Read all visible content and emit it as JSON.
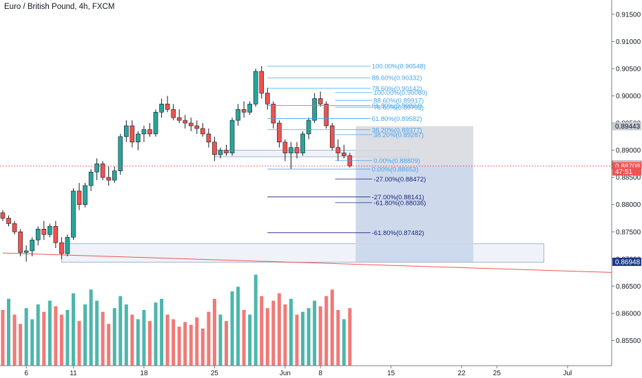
{
  "header": {
    "title": "Euro / British Pound, 4h, FXCM"
  },
  "chart_data": {
    "type": "candlestick",
    "symbol": "Euro / British Pound",
    "interval": "4h",
    "source": "FXCM",
    "y_axis": {
      "range": [
        0.8538,
        0.917
      ],
      "ticks": [
        "0.91500",
        "0.91000",
        "0.90500",
        "0.90000",
        "0.89500",
        "0.89000",
        "0.88500",
        "0.88000",
        "0.87500",
        "0.87000",
        "0.86500",
        "0.86000",
        "0.85500"
      ]
    },
    "x_axis": {
      "ticks": [
        {
          "label": "6",
          "t": 4
        },
        {
          "label": "11",
          "t": 12
        },
        {
          "label": "18",
          "t": 24
        },
        {
          "label": "25",
          "t": 36
        },
        {
          "label": "Jun",
          "t": 48
        },
        {
          "label": "8",
          "t": 54
        },
        {
          "label": "15",
          "t": 66
        },
        {
          "label": "22",
          "t": 78
        },
        {
          "label": "25",
          "t": 84
        },
        {
          "label": "Jul",
          "t": 96
        }
      ]
    },
    "price_badges": [
      {
        "label": "0.89443",
        "price": 0.89443,
        "style": "gray"
      },
      {
        "label": "0.88728",
        "price": 0.88728,
        "style": "dark"
      },
      {
        "label": "0.88708",
        "price": 0.88708,
        "style": "red"
      },
      {
        "label": "47:51",
        "price": 0.8861,
        "style": "red-sub"
      },
      {
        "label": "0.86948",
        "price": 0.86948,
        "style": "blue"
      }
    ],
    "current_price": 0.88708,
    "fib_levels": [
      {
        "label": "100.00%(0.90548)",
        "price": 0.90548,
        "color": "#42a5f5"
      },
      {
        "label": "88.60%(0.90332)",
        "price": 0.90332,
        "color": "#42a5f5"
      },
      {
        "label": "78.60%(0.90142)",
        "price": 0.90142,
        "color": "#42a5f5"
      },
      {
        "label": "100.00%(0.90060)",
        "price": 0.9006,
        "color": "#42a5f5"
      },
      {
        "label": "88.60%(0.89917)",
        "price": 0.89917,
        "color": "#42a5f5"
      },
      {
        "label": "61.80%(0.89824)",
        "price": 0.89824,
        "color": "#42a5f5"
      },
      {
        "label": "78.60%(0.89792)",
        "price": 0.89792,
        "color": "#42a5f5"
      },
      {
        "label": "61.80%(0.89582)",
        "price": 0.89582,
        "color": "#42a5f5"
      },
      {
        "label": "38.20%(0.89377)",
        "price": 0.89377,
        "color": "#42a5f5"
      },
      {
        "label": "38.20%(0.89287)",
        "price": 0.89287,
        "color": "#42a5f5"
      },
      {
        "label": "0.00%(0.88809)",
        "price": 0.88809,
        "color": "#42a5f5"
      },
      {
        "label": "0.00%(0.88653)",
        "price": 0.88653,
        "color": "#42a5f5"
      },
      {
        "label": "-27.00%(0.88472)",
        "price": 0.88472,
        "color": "#1a237e"
      },
      {
        "label": "-27.00%(0.88141)",
        "price": 0.88141,
        "color": "#1a237e"
      },
      {
        "label": "-61.80%(0.88036)",
        "price": 0.88036,
        "color": "#1a237e"
      },
      {
        "label": "-61.80%(0.87482)",
        "price": 0.87482,
        "color": "#1a237e"
      }
    ],
    "zones": [
      {
        "name": "upper-support-zone",
        "t0": 36,
        "t1": 69,
        "top": 0.89,
        "bottom": 0.8888
      },
      {
        "name": "lower-support-zone",
        "t0": 10,
        "t1": 92,
        "top": 0.8728,
        "bottom": 0.8694
      },
      {
        "name": "short-position-stop",
        "t0": 60,
        "t1": 80,
        "top": 0.89443,
        "bottom": 0.88728
      },
      {
        "name": "short-position-target",
        "t0": 60,
        "t1": 80,
        "top": 0.88728,
        "bottom": 0.86948
      }
    ],
    "trendline": {
      "t0": 0,
      "p0": 0.8711,
      "t1": 100,
      "p1": 0.86765
    },
    "candles": [
      [
        0,
        0.8785,
        0.879,
        0.877,
        0.8775
      ],
      [
        1,
        0.8775,
        0.878,
        0.876,
        0.8765
      ],
      [
        2,
        0.8765,
        0.877,
        0.8745,
        0.875
      ],
      [
        3,
        0.875,
        0.8755,
        0.8705,
        0.8712
      ],
      [
        4,
        0.8712,
        0.8725,
        0.8695,
        0.8715
      ],
      [
        5,
        0.8715,
        0.874,
        0.8705,
        0.8735
      ],
      [
        6,
        0.8735,
        0.876,
        0.8725,
        0.8755
      ],
      [
        7,
        0.8755,
        0.877,
        0.8735,
        0.8745
      ],
      [
        8,
        0.8745,
        0.8765,
        0.874,
        0.876
      ],
      [
        9,
        0.876,
        0.877,
        0.872,
        0.873
      ],
      [
        10,
        0.873,
        0.874,
        0.87,
        0.871
      ],
      [
        11,
        0.871,
        0.8745,
        0.8705,
        0.874
      ],
      [
        12,
        0.874,
        0.883,
        0.8735,
        0.8825
      ],
      [
        13,
        0.8825,
        0.884,
        0.879,
        0.88
      ],
      [
        14,
        0.88,
        0.884,
        0.8795,
        0.8835
      ],
      [
        15,
        0.8835,
        0.8865,
        0.8825,
        0.886
      ],
      [
        16,
        0.886,
        0.8885,
        0.8845,
        0.8875
      ],
      [
        17,
        0.8875,
        0.888,
        0.8845,
        0.885
      ],
      [
        18,
        0.885,
        0.887,
        0.8835,
        0.8845
      ],
      [
        19,
        0.8845,
        0.887,
        0.884,
        0.8862
      ],
      [
        20,
        0.8862,
        0.893,
        0.8855,
        0.8925
      ],
      [
        21,
        0.8925,
        0.8955,
        0.8915,
        0.8945
      ],
      [
        22,
        0.8945,
        0.8955,
        0.8905,
        0.8915
      ],
      [
        23,
        0.8915,
        0.8935,
        0.89,
        0.893
      ],
      [
        24,
        0.893,
        0.8945,
        0.8915,
        0.8938
      ],
      [
        25,
        0.8938,
        0.895,
        0.8925,
        0.893
      ],
      [
        26,
        0.893,
        0.8975,
        0.8925,
        0.897
      ],
      [
        27,
        0.897,
        0.8995,
        0.896,
        0.8985
      ],
      [
        28,
        0.8985,
        0.9,
        0.897,
        0.8975
      ],
      [
        29,
        0.8975,
        0.8985,
        0.8955,
        0.896
      ],
      [
        30,
        0.896,
        0.8975,
        0.895,
        0.8955
      ],
      [
        31,
        0.8955,
        0.8965,
        0.894,
        0.895
      ],
      [
        32,
        0.895,
        0.896,
        0.8935,
        0.8945
      ],
      [
        33,
        0.8945,
        0.8955,
        0.893,
        0.894
      ],
      [
        34,
        0.894,
        0.895,
        0.8925,
        0.893
      ],
      [
        35,
        0.893,
        0.894,
        0.8905,
        0.8915
      ],
      [
        36,
        0.8915,
        0.8925,
        0.888,
        0.8892
      ],
      [
        37,
        0.8892,
        0.8905,
        0.8885,
        0.89
      ],
      [
        38,
        0.89,
        0.891,
        0.889,
        0.8895
      ],
      [
        39,
        0.8895,
        0.896,
        0.889,
        0.8955
      ],
      [
        40,
        0.8955,
        0.8985,
        0.8945,
        0.8975
      ],
      [
        41,
        0.8975,
        0.899,
        0.896,
        0.897
      ],
      [
        42,
        0.897,
        0.899,
        0.8965,
        0.8985
      ],
      [
        43,
        0.8985,
        0.905,
        0.898,
        0.9045
      ],
      [
        44,
        0.9045,
        0.9055,
        0.8995,
        0.9005
      ],
      [
        45,
        0.9005,
        0.9015,
        0.8975,
        0.8985
      ],
      [
        46,
        0.8985,
        0.899,
        0.894,
        0.895
      ],
      [
        47,
        0.895,
        0.8955,
        0.8905,
        0.8915
      ],
      [
        48,
        0.8915,
        0.892,
        0.888,
        0.8895
      ],
      [
        49,
        0.8895,
        0.8915,
        0.8865,
        0.8905
      ],
      [
        50,
        0.8905,
        0.8915,
        0.8885,
        0.8895
      ],
      [
        51,
        0.8895,
        0.8935,
        0.889,
        0.893
      ],
      [
        52,
        0.893,
        0.896,
        0.892,
        0.8955
      ],
      [
        53,
        0.8955,
        0.9005,
        0.895,
        0.8995
      ],
      [
        54,
        0.8995,
        0.9008,
        0.898,
        0.8985
      ],
      [
        55,
        0.8985,
        0.899,
        0.894,
        0.8945
      ],
      [
        56,
        0.8945,
        0.895,
        0.89,
        0.8905
      ],
      [
        57,
        0.8905,
        0.892,
        0.888,
        0.8895
      ],
      [
        58,
        0.8895,
        0.891,
        0.8885,
        0.889
      ],
      [
        59,
        0.889,
        0.8895,
        0.8868,
        0.8871
      ]
    ],
    "volumes": [
      [
        0,
        0.6,
        "r"
      ],
      [
        1,
        0.72,
        "g"
      ],
      [
        2,
        0.55,
        "r"
      ],
      [
        3,
        0.45,
        "r"
      ],
      [
        4,
        0.62,
        "g"
      ],
      [
        5,
        0.5,
        "g"
      ],
      [
        6,
        0.66,
        "g"
      ],
      [
        7,
        0.58,
        "r"
      ],
      [
        8,
        0.7,
        "g"
      ],
      [
        9,
        0.64,
        "r"
      ],
      [
        10,
        0.55,
        "r"
      ],
      [
        11,
        0.6,
        "g"
      ],
      [
        12,
        0.78,
        "g"
      ],
      [
        13,
        0.48,
        "r"
      ],
      [
        14,
        0.66,
        "g"
      ],
      [
        15,
        0.82,
        "g"
      ],
      [
        16,
        0.7,
        "g"
      ],
      [
        17,
        0.58,
        "r"
      ],
      [
        18,
        0.45,
        "r"
      ],
      [
        19,
        0.62,
        "g"
      ],
      [
        20,
        0.75,
        "g"
      ],
      [
        21,
        0.66,
        "g"
      ],
      [
        22,
        0.55,
        "r"
      ],
      [
        23,
        0.5,
        "g"
      ],
      [
        24,
        0.6,
        "g"
      ],
      [
        25,
        0.48,
        "r"
      ],
      [
        26,
        0.68,
        "g"
      ],
      [
        27,
        0.72,
        "g"
      ],
      [
        28,
        0.55,
        "r"
      ],
      [
        29,
        0.5,
        "r"
      ],
      [
        30,
        0.42,
        "r"
      ],
      [
        31,
        0.47,
        "r"
      ],
      [
        32,
        0.44,
        "r"
      ],
      [
        33,
        0.52,
        "r"
      ],
      [
        34,
        0.4,
        "r"
      ],
      [
        35,
        0.58,
        "r"
      ],
      [
        36,
        0.72,
        "r"
      ],
      [
        37,
        0.55,
        "g"
      ],
      [
        38,
        0.48,
        "r"
      ],
      [
        39,
        0.8,
        "g"
      ],
      [
        40,
        0.85,
        "g"
      ],
      [
        41,
        0.6,
        "r"
      ],
      [
        42,
        0.55,
        "g"
      ],
      [
        43,
        0.98,
        "g"
      ],
      [
        44,
        0.75,
        "r"
      ],
      [
        45,
        0.62,
        "r"
      ],
      [
        46,
        0.7,
        "r"
      ],
      [
        47,
        0.78,
        "r"
      ],
      [
        48,
        0.66,
        "r"
      ],
      [
        49,
        0.72,
        "g"
      ],
      [
        50,
        0.55,
        "r"
      ],
      [
        51,
        0.58,
        "g"
      ],
      [
        52,
        0.62,
        "g"
      ],
      [
        53,
        0.7,
        "g"
      ],
      [
        54,
        0.64,
        "r"
      ],
      [
        55,
        0.75,
        "r"
      ],
      [
        56,
        0.82,
        "r"
      ],
      [
        57,
        0.6,
        "r"
      ],
      [
        58,
        0.5,
        "g"
      ],
      [
        59,
        0.62,
        "r"
      ]
    ],
    "colors": {
      "up": "#26a69a",
      "down": "#ef5350",
      "volume_up": "#4db6ac",
      "volume_down": "#ef7a77",
      "fib_upper": "#42a5f5",
      "fib_lower": "#1a237e",
      "zone_fill": "#e9eef6",
      "zone_stroke": "#90a4c0",
      "stop_fill": "#d6d8de",
      "target_fill": "#c9d6ea",
      "trendline": "#ef5350",
      "axis_bg": "#ffffff"
    },
    "grid": false
  }
}
